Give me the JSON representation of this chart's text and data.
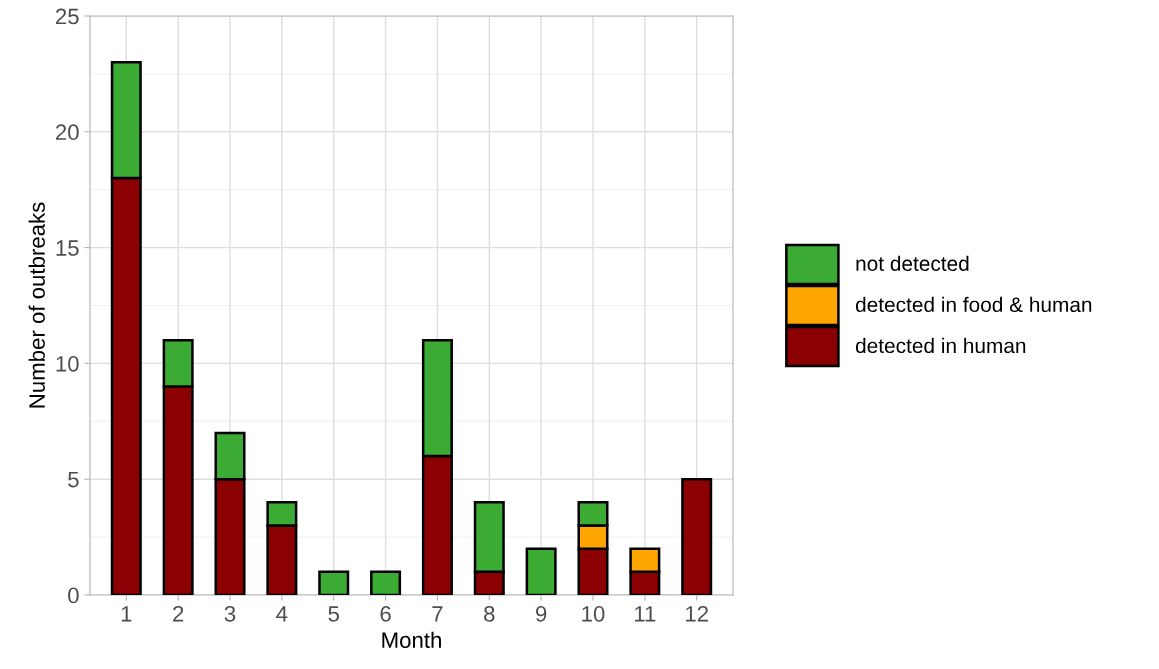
{
  "chart_data": {
    "type": "bar",
    "xlabel": "Month",
    "ylabel": "Number of outbreaks",
    "categories": [
      "1",
      "2",
      "3",
      "4",
      "5",
      "6",
      "7",
      "8",
      "9",
      "10",
      "11",
      "12"
    ],
    "stacked": true,
    "series": [
      {
        "name": "detected in human",
        "color": "#8b0000",
        "values": [
          18,
          9,
          5,
          3,
          0,
          0,
          6,
          1,
          0,
          2,
          1,
          5
        ]
      },
      {
        "name": "detected in food & human",
        "color": "#ffa500",
        "values": [
          0,
          0,
          0,
          0,
          0,
          0,
          0,
          0,
          0,
          1,
          1,
          0
        ]
      },
      {
        "name": "not detected",
        "color": "#3cab34",
        "values": [
          5,
          2,
          2,
          1,
          1,
          1,
          5,
          3,
          2,
          1,
          0,
          0
        ]
      }
    ],
    "ylim": [
      0,
      25
    ],
    "yticks": [
      0,
      5,
      10,
      15,
      20,
      25
    ],
    "grid": true,
    "legend": "right"
  }
}
